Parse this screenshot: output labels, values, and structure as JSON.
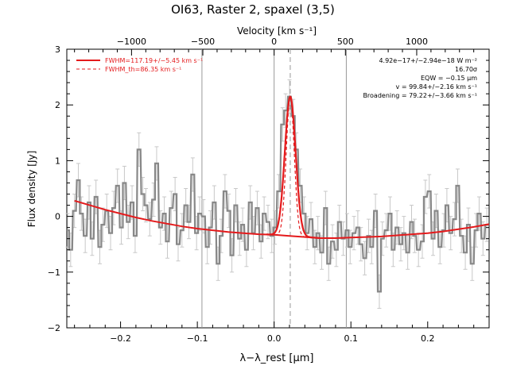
{
  "chart_data": {
    "type": "line",
    "title": "OI63, Raster 2, spaxel (3,5)",
    "top_axis": {
      "label": "Velocity [km s⁻¹]",
      "ticks": [
        -1000,
        -500,
        0,
        500,
        1000
      ],
      "tick_labels": [
        "−1000",
        "−500",
        "0",
        "500",
        "1000"
      ]
    },
    "xlabel": "λ−λ_rest [μm]",
    "ylabel": "Flux density [Jy]",
    "xlim": [
      -0.27,
      0.28
    ],
    "ylim": [
      -2.0,
      3.0
    ],
    "x_ticks": [
      -0.2,
      -0.1,
      0.0,
      0.1,
      0.2
    ],
    "x_tick_labels": [
      "−0.2",
      "−0.1",
      "0.0",
      "0.1",
      "0.2"
    ],
    "y_ticks": [
      -2,
      -1,
      0,
      1,
      2,
      3
    ],
    "y_tick_labels": [
      "−2",
      "−1",
      "0",
      "1",
      "2",
      "3"
    ],
    "vlines": [
      -0.094,
      0.0,
      0.094
    ],
    "vline_dashed": 0.021,
    "legend": {
      "placement": "top-left",
      "entries": [
        {
          "label": "FWHM=117.19+/−5.45 km s⁻¹",
          "style": "solid",
          "color": "#e41a1c"
        },
        {
          "label": "FWHM_th=86.35 km s⁻¹",
          "style": "dashed",
          "color": "#e41a1c"
        }
      ]
    },
    "annotations": [
      "4.92e−17+/−2.94e−18 W m⁻²",
      "16.70σ",
      "EQW = −0.15 μm",
      "v = 99.84+/−2.16 km s⁻¹",
      "Broadening = 79.22+/−3.66 km s⁻¹"
    ],
    "series": [
      {
        "role": "data",
        "style": "step",
        "color": "#888888",
        "x": [
          -0.269,
          -0.265,
          -0.26,
          -0.255,
          -0.251,
          -0.246,
          -0.241,
          -0.237,
          -0.232,
          -0.227,
          -0.223,
          -0.218,
          -0.213,
          -0.209,
          -0.204,
          -0.199,
          -0.195,
          -0.19,
          -0.185,
          -0.181,
          -0.176,
          -0.171,
          -0.167,
          -0.162,
          -0.157,
          -0.153,
          -0.148,
          -0.143,
          -0.139,
          -0.134,
          -0.129,
          -0.125,
          -0.12,
          -0.115,
          -0.111,
          -0.106,
          -0.101,
          -0.097,
          -0.092,
          -0.087,
          -0.083,
          -0.078,
          -0.073,
          -0.069,
          -0.064,
          -0.059,
          -0.055,
          -0.05,
          -0.045,
          -0.041,
          -0.036,
          -0.031,
          -0.027,
          -0.022,
          -0.017,
          -0.013,
          -0.008,
          -0.003,
          0.001,
          0.006,
          0.011,
          0.015,
          0.02,
          0.025,
          0.029,
          0.034,
          0.039,
          0.043,
          0.048,
          0.053,
          0.057,
          0.062,
          0.067,
          0.071,
          0.076,
          0.081,
          0.085,
          0.09,
          0.095,
          0.099,
          0.104,
          0.109,
          0.113,
          0.118,
          0.123,
          0.127,
          0.132,
          0.137,
          0.141,
          0.146,
          0.151,
          0.155,
          0.16,
          0.165,
          0.169,
          0.174,
          0.179,
          0.183,
          0.188,
          0.193,
          0.197,
          0.202,
          0.207,
          0.211,
          0.216,
          0.221,
          0.225,
          0.23,
          0.235,
          0.239,
          0.244,
          0.249,
          0.253,
          0.258,
          0.263,
          0.267,
          0.272,
          0.277
        ],
        "y": [
          -0.25,
          -0.6,
          0.1,
          0.65,
          0.05,
          -0.35,
          0.25,
          -0.4,
          0.35,
          -0.55,
          -0.15,
          0.1,
          -0.3,
          0.15,
          0.55,
          -0.2,
          0.6,
          -0.1,
          0.25,
          -0.35,
          1.2,
          0.4,
          0.2,
          -0.05,
          0.3,
          0.95,
          -0.2,
          0.05,
          -0.45,
          0.15,
          0.4,
          -0.5,
          -0.25,
          0.2,
          -0.1,
          0.75,
          -0.3,
          0.05,
          0.0,
          -0.55,
          -0.2,
          0.25,
          -0.85,
          -0.35,
          0.45,
          0.1,
          -0.7,
          0.2,
          -0.4,
          -0.15,
          -0.6,
          0.25,
          -0.3,
          0.15,
          -0.45,
          0.05,
          -0.1,
          -0.35,
          -0.2,
          0.45,
          1.65,
          1.9,
          2.15,
          1.8,
          1.2,
          0.55,
          0.05,
          -0.3,
          -0.05,
          -0.55,
          -0.3,
          -0.65,
          0.15,
          -0.85,
          -0.45,
          -0.6,
          -0.1,
          -0.4,
          -0.25,
          -0.55,
          -0.3,
          -0.2,
          -0.5,
          -0.75,
          -0.35,
          -0.55,
          0.1,
          -1.35,
          -0.4,
          -0.25,
          0.05,
          -0.6,
          -0.2,
          -0.5,
          -0.3,
          -0.65,
          -0.1,
          -0.35,
          -0.6,
          -0.45,
          0.35,
          0.45,
          -0.4,
          0.1,
          -0.55,
          -0.25,
          0.2,
          -0.3,
          -0.05,
          0.55,
          -0.35,
          -0.65,
          -0.15,
          -0.85,
          -0.25,
          0.05,
          -0.4,
          -0.15
        ],
        "error": 0.3
      },
      {
        "role": "continuum",
        "style": "line",
        "color": "#e41a1c",
        "x": [
          -0.26,
          -0.24,
          -0.22,
          -0.2,
          -0.18,
          -0.16,
          -0.14,
          -0.12,
          -0.1,
          -0.08,
          -0.06,
          -0.04,
          -0.02,
          0.0,
          0.02,
          0.04,
          0.06,
          0.08,
          0.1,
          0.12,
          0.14,
          0.16,
          0.18,
          0.2,
          0.22,
          0.24,
          0.26,
          0.28
        ],
        "y": [
          0.28,
          0.2,
          0.12,
          0.05,
          -0.02,
          -0.08,
          -0.13,
          -0.18,
          -0.22,
          -0.25,
          -0.28,
          -0.3,
          -0.32,
          -0.33,
          -0.35,
          -0.37,
          -0.39,
          -0.39,
          -0.38,
          -0.37,
          -0.36,
          -0.34,
          -0.32,
          -0.3,
          -0.27,
          -0.23,
          -0.19,
          -0.14
        ]
      },
      {
        "role": "gaussian-fit",
        "style": "line",
        "color": "#e41a1c",
        "peak": 2.15,
        "center": 0.021,
        "fwhm_um": 0.0165,
        "x_range": [
          -0.01,
          0.06
        ]
      },
      {
        "role": "thermal-fit",
        "style": "dashed",
        "color": "#e41a1c",
        "peak": 2.15,
        "center": 0.021,
        "fwhm_um": 0.0122,
        "x_range": [
          0.0,
          0.045
        ]
      }
    ]
  }
}
